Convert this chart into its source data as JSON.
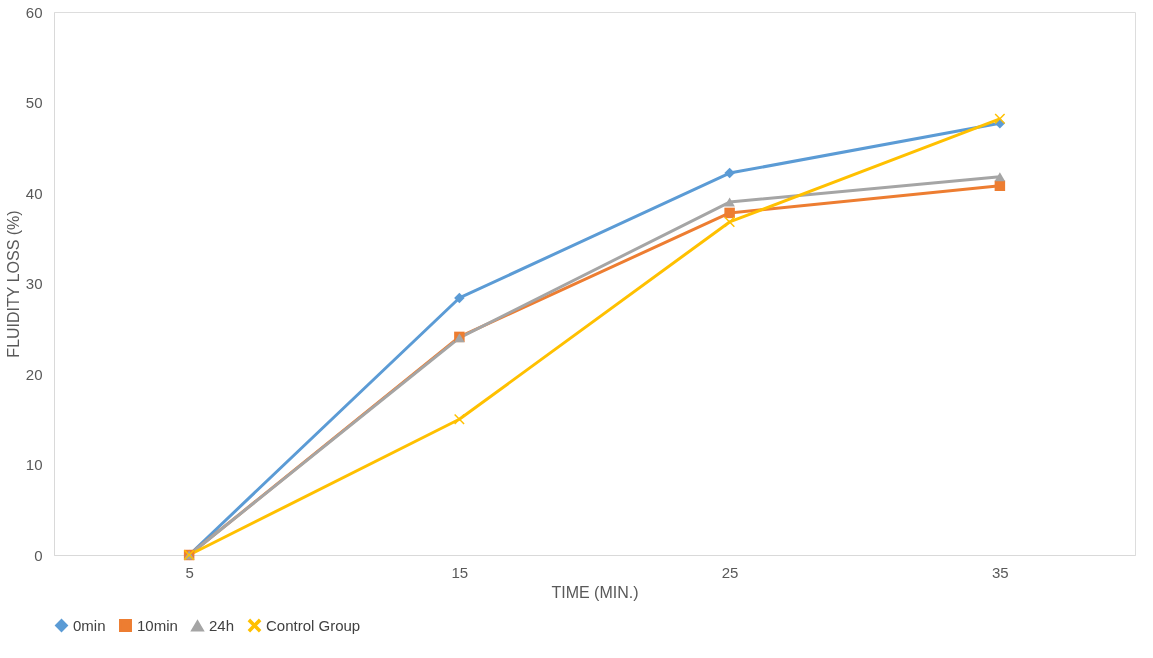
{
  "chart_data": {
    "type": "line",
    "xlabel": "TIME (MIN.)",
    "ylabel": "FLUIDITY LOSS (%)",
    "categories": [
      "5",
      "15",
      "25",
      "35"
    ],
    "series": [
      {
        "name": "0min",
        "color": "#5b9bd5",
        "marker": "diamond",
        "values": [
          0,
          28.4,
          42.2,
          47.7
        ]
      },
      {
        "name": "10min",
        "color": "#ed7d31",
        "marker": "square",
        "values": [
          0,
          24.1,
          37.8,
          40.8
        ]
      },
      {
        "name": "24h",
        "color": "#a5a5a5",
        "marker": "triangle",
        "values": [
          0,
          24,
          39,
          41.8
        ]
      },
      {
        "name": "Control Group",
        "color": "#ffc000",
        "marker": "cross",
        "values": [
          0,
          15,
          36.8,
          48.2
        ]
      }
    ],
    "ylim": [
      0,
      60
    ],
    "yticks": [
      0,
      10,
      20,
      30,
      40,
      50,
      60
    ],
    "grid": false,
    "legend": "bottom"
  }
}
